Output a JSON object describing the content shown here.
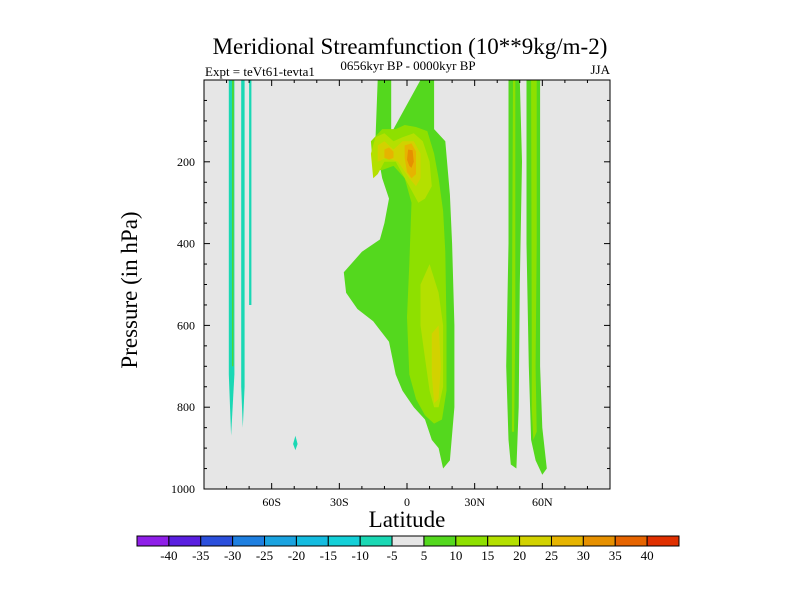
{
  "chart_data": {
    "type": "contour",
    "title": "Meridional Streamfunction (10**9kg/m-2)",
    "subtitle": "0656kyr BP - 0000kyr BP",
    "left_label": "Expt = teVt61-tevta1",
    "right_label": "JJA",
    "xlabel": "Latitude",
    "ylabel": "Pressure (in hPa)",
    "xlim": [
      -90,
      90
    ],
    "ylim": [
      1000,
      0
    ],
    "x_ticks": [
      {
        "value": -60,
        "label": "60S"
      },
      {
        "value": -30,
        "label": "30S"
      },
      {
        "value": 0,
        "label": "0"
      },
      {
        "value": 30,
        "label": "30N"
      },
      {
        "value": 60,
        "label": "60N"
      }
    ],
    "y_ticks": [
      {
        "value": 200,
        "label": "200"
      },
      {
        "value": 400,
        "label": "400"
      },
      {
        "value": 600,
        "label": "600"
      },
      {
        "value": 800,
        "label": "800"
      },
      {
        "value": 1000,
        "label": "1000"
      }
    ],
    "colorbar": {
      "labels": [
        "-40",
        "-35",
        "-30",
        "-25",
        "-20",
        "-15",
        "-10",
        "-5",
        "5",
        "10",
        "15",
        "20",
        "25",
        "30",
        "35",
        "40"
      ],
      "colors": [
        "#8f1fe8",
        "#5a1fe0",
        "#2b4fdc",
        "#1e7fe0",
        "#1aa3e0",
        "#14bce0",
        "#14d0d8",
        "#1ad8b4",
        "#e6e6e6",
        "#54d81e",
        "#8ee000",
        "#b4e000",
        "#d2d200",
        "#e6b400",
        "#e69000",
        "#e66400",
        "#e03000"
      ]
    },
    "background_color": "#e6e6e6",
    "regions": [
      {
        "name": "region-neg-sh-a",
        "color": "#1ad8b4",
        "poly": [
          [
            -79,
            0
          ],
          [
            -76.5,
            0
          ],
          [
            -76.5,
            720
          ],
          [
            -78,
            870
          ],
          [
            -79,
            720
          ]
        ]
      },
      {
        "name": "region-pos-sh-a",
        "color": "#54d81e",
        "poly": [
          [
            -77.5,
            0
          ],
          [
            -76.8,
            0
          ],
          [
            -77,
            700
          ],
          [
            -77.5,
            700
          ]
        ]
      },
      {
        "name": "region-neg-sh-b",
        "color": "#1ad8b4",
        "poly": [
          [
            -73.5,
            0
          ],
          [
            -72,
            0
          ],
          [
            -72,
            750
          ],
          [
            -72.8,
            850
          ],
          [
            -73.5,
            750
          ]
        ]
      },
      {
        "name": "region-neg-sh-c",
        "color": "#1ad8b4",
        "poly": [
          [
            -70,
            0
          ],
          [
            -69,
            0
          ],
          [
            -69,
            550
          ],
          [
            -70,
            550
          ]
        ]
      },
      {
        "name": "region-neg-dot",
        "color": "#1ad8b4",
        "poly": [
          [
            -50.5,
            890
          ],
          [
            -49.5,
            870
          ],
          [
            -48.5,
            890
          ],
          [
            -49.5,
            905
          ]
        ]
      },
      {
        "name": "region-neg-eq",
        "color": "#1ad8b4",
        "poly": [
          [
            -3,
            230
          ],
          [
            -1.5,
            230
          ],
          [
            -1.5,
            600
          ],
          [
            -3,
            600
          ]
        ]
      },
      {
        "name": "region-5-center",
        "color": "#54d81e",
        "poly": [
          [
            -28,
            470
          ],
          [
            -20,
            420
          ],
          [
            -12,
            390
          ],
          [
            -10,
            350
          ],
          [
            -8,
            290
          ],
          [
            -11,
            240
          ],
          [
            -14,
            150
          ],
          [
            -13,
            0
          ],
          [
            -7,
            0
          ],
          [
            -7,
            130
          ],
          [
            0,
            60
          ],
          [
            6,
            0
          ],
          [
            12,
            0
          ],
          [
            12,
            120
          ],
          [
            17,
            150
          ],
          [
            19,
            280
          ],
          [
            20,
            400
          ],
          [
            21,
            600
          ],
          [
            21,
            800
          ],
          [
            19,
            930
          ],
          [
            16,
            950
          ],
          [
            14,
            900
          ],
          [
            11,
            880
          ],
          [
            8,
            830
          ],
          [
            3,
            800
          ],
          [
            -2,
            760
          ],
          [
            -5,
            720
          ],
          [
            -8,
            640
          ],
          [
            -15,
            590
          ],
          [
            -22,
            560
          ],
          [
            -27,
            520
          ]
        ]
      },
      {
        "name": "region-10-center",
        "color": "#8ee000",
        "poly": [
          [
            -15,
            220
          ],
          [
            -16,
            150
          ],
          [
            -11,
            120
          ],
          [
            -5,
            120
          ],
          [
            -1,
            110
          ],
          [
            4,
            115
          ],
          [
            9,
            125
          ],
          [
            12,
            180
          ],
          [
            14,
            240
          ],
          [
            16,
            320
          ],
          [
            17,
            420
          ],
          [
            17.5,
            600
          ],
          [
            17.5,
            760
          ],
          [
            15.5,
            830
          ],
          [
            12,
            840
          ],
          [
            8,
            820
          ],
          [
            4,
            780
          ],
          [
            1,
            720
          ],
          [
            0,
            580
          ],
          [
            1,
            450
          ],
          [
            2,
            300
          ],
          [
            -1,
            240
          ],
          [
            -6,
            210
          ],
          [
            -11,
            220
          ]
        ]
      },
      {
        "name": "region-15-upper",
        "color": "#b4e000",
        "poly": [
          [
            -15,
            240
          ],
          [
            -16,
            180
          ],
          [
            -14,
            140
          ],
          [
            -10,
            130
          ],
          [
            -6,
            150
          ],
          [
            -2,
            140
          ],
          [
            3,
            130
          ],
          [
            7,
            150
          ],
          [
            10,
            200
          ],
          [
            11,
            260
          ],
          [
            8,
            290
          ],
          [
            5,
            300
          ],
          [
            1,
            260
          ],
          [
            -2,
            230
          ],
          [
            -5,
            200
          ],
          [
            -10,
            200
          ],
          [
            -13,
            230
          ]
        ]
      },
      {
        "name": "region-15-lower",
        "color": "#b4e000",
        "poly": [
          [
            6,
            500
          ],
          [
            10,
            450
          ],
          [
            14,
            520
          ],
          [
            16,
            600
          ],
          [
            16,
            750
          ],
          [
            14,
            800
          ],
          [
            12,
            800
          ],
          [
            10,
            760
          ],
          [
            8,
            680
          ],
          [
            6,
            600
          ]
        ]
      },
      {
        "name": "region-20-upper",
        "color": "#d2d200",
        "poly": [
          [
            -13,
            200
          ],
          [
            -13,
            160
          ],
          [
            -10,
            150
          ],
          [
            -6,
            170
          ],
          [
            -2,
            150
          ],
          [
            3,
            150
          ],
          [
            6,
            180
          ],
          [
            6,
            240
          ],
          [
            4,
            260
          ],
          [
            1,
            240
          ],
          [
            -4,
            200
          ],
          [
            -9,
            190
          ]
        ]
      },
      {
        "name": "region-20-lower",
        "color": "#d2d200",
        "poly": [
          [
            11,
            620
          ],
          [
            14,
            600
          ],
          [
            15,
            700
          ],
          [
            14,
            780
          ],
          [
            12,
            790
          ],
          [
            11,
            720
          ]
        ]
      },
      {
        "name": "region-25-a",
        "color": "#e6b400",
        "poly": [
          [
            -10,
            190
          ],
          [
            -10,
            170
          ],
          [
            -8,
            165
          ],
          [
            -6,
            175
          ],
          [
            -6,
            190
          ],
          [
            -8,
            195
          ]
        ]
      },
      {
        "name": "region-25-b",
        "color": "#e6b400",
        "poly": [
          [
            -1,
            190
          ],
          [
            -1,
            160
          ],
          [
            2,
            155
          ],
          [
            4,
            175
          ],
          [
            4,
            230
          ],
          [
            2,
            240
          ],
          [
            0,
            225
          ]
        ]
      },
      {
        "name": "region-30-b",
        "color": "#e69000",
        "poly": [
          [
            0,
            195
          ],
          [
            0.5,
            170
          ],
          [
            2.5,
            172
          ],
          [
            3,
            200
          ],
          [
            2,
            215
          ],
          [
            1,
            210
          ]
        ]
      },
      {
        "name": "region-5-nh-a",
        "color": "#54d81e",
        "poly": [
          [
            45,
            0
          ],
          [
            50,
            0
          ],
          [
            51,
            200
          ],
          [
            50,
            500
          ],
          [
            49.5,
            800
          ],
          [
            48.5,
            950
          ],
          [
            46,
            940
          ],
          [
            45,
            880
          ],
          [
            44,
            700
          ],
          [
            45,
            400
          ]
        ]
      },
      {
        "name": "region-10-nh-a",
        "color": "#8ee000",
        "poly": [
          [
            47,
            0
          ],
          [
            48,
            0
          ],
          [
            48,
            600
          ],
          [
            47.5,
            860
          ],
          [
            46.5,
            860
          ],
          [
            46.5,
            600
          ]
        ]
      },
      {
        "name": "region-5-nh-b",
        "color": "#54d81e",
        "poly": [
          [
            53,
            0
          ],
          [
            59,
            0
          ],
          [
            59,
            350
          ],
          [
            59,
            700
          ],
          [
            60,
            850
          ],
          [
            62,
            950
          ],
          [
            60,
            965
          ],
          [
            57,
            930
          ],
          [
            55,
            880
          ],
          [
            54,
            700
          ],
          [
            53,
            400
          ]
        ]
      },
      {
        "name": "region-10-nh-b",
        "color": "#8ee000",
        "poly": [
          [
            55,
            0
          ],
          [
            57.5,
            0
          ],
          [
            57.5,
            400
          ],
          [
            57,
            700
          ],
          [
            57.5,
            860
          ],
          [
            56,
            880
          ],
          [
            55.3,
            800
          ],
          [
            55.3,
            600
          ]
        ]
      }
    ]
  }
}
